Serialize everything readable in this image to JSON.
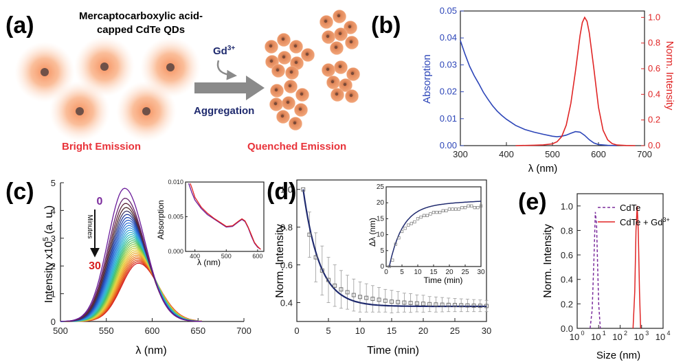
{
  "panels": {
    "a": {
      "label": "(a)",
      "title_line1": "Mercaptocarboxylic acid-",
      "title_line2": "capped CdTe QDs",
      "reagent": "Gd",
      "reagent_sup": "3+",
      "arrow_label": "Aggregation",
      "left_caption": "Bright Emission",
      "right_caption": "Quenched Emission",
      "colors": {
        "caption": "#e8333a",
        "arrow": "#8a8a8a",
        "reagent": "#1f2a6e",
        "qd_core": "#7a5a4e",
        "qd_glow": "#f7a070"
      }
    },
    "b": {
      "label": "(b)",
      "colors": {
        "absorption": "#2c45b8",
        "emission": "#e02424"
      }
    },
    "c": {
      "label": "(c)",
      "arrow_top": "0",
      "arrow_bottom": "30",
      "arrow_text": "Minutes",
      "colors": {
        "start": "#6a1b9a",
        "end": "#d62020"
      }
    },
    "d": {
      "label": "(d)",
      "colors": {
        "fit": "#1f2a6e",
        "marker": "#777777"
      }
    },
    "e": {
      "label": "(e)",
      "colors": {
        "cdte": "#7b2d9c",
        "cdte_gd": "#e02424"
      }
    }
  },
  "chart_data": [
    {
      "id": "b",
      "type": "line",
      "xlabel": "λ (nm)",
      "ylabel_left": "Absorption",
      "ylabel_right": "Norm. Intensity",
      "xlim": [
        300,
        700
      ],
      "ylim_left": [
        0,
        0.05
      ],
      "ylim_right": [
        0,
        1.05
      ],
      "x_ticks": [
        "300",
        "400",
        "500",
        "600",
        "700"
      ],
      "y_ticks_left": [
        "0.00",
        "0.01",
        "0.02",
        "0.03",
        "0.04",
        "0.05"
      ],
      "y_ticks_right": [
        "0.0",
        "0.2",
        "0.4",
        "0.6",
        "0.8",
        "1.0"
      ],
      "series": [
        {
          "axis": "left",
          "x": [
            300,
            310,
            320,
            330,
            340,
            350,
            360,
            370,
            380,
            390,
            400,
            420,
            440,
            460,
            480,
            500,
            510,
            520,
            530,
            540,
            550,
            560,
            570,
            580,
            590,
            600,
            620,
            640
          ],
          "y": [
            0.039,
            0.034,
            0.0295,
            0.026,
            0.023,
            0.0198,
            0.0172,
            0.0148,
            0.0128,
            0.0112,
            0.0098,
            0.0075,
            0.006,
            0.005,
            0.0042,
            0.0035,
            0.0033,
            0.0035,
            0.0039,
            0.0046,
            0.0052,
            0.005,
            0.0038,
            0.0022,
            0.001,
            0.0004,
            0.0001,
            0.0
          ]
        },
        {
          "axis": "right",
          "x": [
            420,
            460,
            480,
            500,
            510,
            520,
            530,
            540,
            550,
            560,
            565,
            570,
            575,
            580,
            590,
            600,
            610,
            620,
            630,
            640,
            660,
            680
          ],
          "y": [
            0.0,
            0.003,
            0.006,
            0.014,
            0.03,
            0.07,
            0.16,
            0.33,
            0.58,
            0.86,
            0.96,
            1.0,
            0.97,
            0.88,
            0.6,
            0.3,
            0.12,
            0.045,
            0.015,
            0.005,
            0.001,
            0.0
          ]
        }
      ]
    },
    {
      "id": "c",
      "type": "line",
      "xlabel": "λ (nm)",
      "ylabel": "Intensity x10",
      "ylabel_sup": "5",
      "ylabel_tail": " (a. u.)",
      "xlim": [
        500,
        700
      ],
      "ylim": [
        0,
        5
      ],
      "x_ticks": [
        "500",
        "550",
        "600",
        "650",
        "700"
      ],
      "y_ticks": [
        "0",
        "1",
        "2",
        "3",
        "4",
        "5"
      ],
      "peak_start": 570,
      "peak_end": 585,
      "amp_start": 4.8,
      "amp_end": 2.1,
      "curve_count": 30,
      "inset": {
        "xlabel": "λ (nm)",
        "ylabel": "Absorption",
        "xlim": [
          370,
          620
        ],
        "ylim": [
          0,
          0.01
        ],
        "x_ticks": [
          "400",
          "500",
          "600"
        ],
        "y_ticks": [
          "0.000",
          "0.005",
          "0.010"
        ],
        "series": [
          {
            "name": "0 min",
            "x": [
              380,
              390,
              400,
              420,
              440,
              460,
              480,
              500,
              520,
              540,
              550,
              560,
              570,
              580,
              590,
              600,
              610
            ],
            "y": [
              0.0098,
              0.0085,
              0.0074,
              0.0062,
              0.0053,
              0.0047,
              0.0041,
              0.0035,
              0.0036,
              0.0043,
              0.0046,
              0.0043,
              0.0034,
              0.0022,
              0.0012,
              0.0006,
              0.0003
            ]
          },
          {
            "name": "30 min",
            "x": [
              385,
              390,
              400,
              420,
              440,
              460,
              480,
              500,
              520,
              540,
              550,
              560,
              570,
              580,
              590,
              600,
              610
            ],
            "y": [
              0.0098,
              0.0092,
              0.0078,
              0.0064,
              0.0055,
              0.0048,
              0.0042,
              0.0036,
              0.0037,
              0.0044,
              0.0047,
              0.0044,
              0.0035,
              0.0024,
              0.0013,
              0.0007,
              0.0003
            ]
          }
        ]
      }
    },
    {
      "id": "d",
      "type": "scatter",
      "xlabel": "Time (min)",
      "ylabel": "Norm. Intensity",
      "xlim": [
        0,
        30
      ],
      "ylim": [
        0.3,
        1.05
      ],
      "x_ticks": [
        "0",
        "5",
        "10",
        "15",
        "20",
        "25",
        "30"
      ],
      "y_ticks": [
        "0.4",
        "0.6",
        "0.8",
        "1.0"
      ],
      "points_x": [
        1,
        2,
        3,
        4,
        5,
        6,
        7,
        8,
        9,
        10,
        11,
        12,
        13,
        14,
        15,
        16,
        17,
        18,
        19,
        20,
        21,
        22,
        23,
        24,
        25,
        26,
        27,
        28,
        29,
        30
      ],
      "points_y": [
        1.0,
        0.76,
        0.64,
        0.57,
        0.52,
        0.49,
        0.47,
        0.455,
        0.44,
        0.43,
        0.425,
        0.42,
        0.415,
        0.41,
        0.405,
        0.403,
        0.4,
        0.398,
        0.396,
        0.394,
        0.392,
        0.39,
        0.389,
        0.388,
        0.387,
        0.386,
        0.385,
        0.384,
        0.383,
        0.382
      ],
      "errors": [
        0.0,
        0.12,
        0.13,
        0.13,
        0.12,
        0.11,
        0.1,
        0.09,
        0.085,
        0.08,
        0.075,
        0.07,
        0.065,
        0.06,
        0.06,
        0.055,
        0.05,
        0.05,
        0.045,
        0.045,
        0.04,
        0.04,
        0.038,
        0.036,
        0.035,
        0.034,
        0.033,
        0.032,
        0.031,
        0.03
      ],
      "inset": {
        "xlabel": "Time (min)",
        "ylabel": "Δλ (nm)",
        "xlim": [
          0,
          30
        ],
        "ylim": [
          0,
          25
        ],
        "x_ticks": [
          "0",
          "5",
          "10",
          "15",
          "20",
          "25",
          "30"
        ],
        "y_ticks": [
          "0",
          "5",
          "10",
          "15",
          "20",
          "25"
        ],
        "points_x": [
          1,
          2,
          3,
          4,
          5,
          6,
          7,
          8,
          9,
          10,
          11,
          12,
          13,
          14,
          15,
          16,
          17,
          18,
          19,
          20,
          21,
          22,
          23,
          24,
          25,
          26,
          27,
          28,
          29,
          30
        ],
        "points_y": [
          0,
          2,
          7,
          9,
          11,
          12,
          13,
          13.5,
          14,
          15,
          15.5,
          16,
          16,
          16.5,
          17,
          17,
          17,
          17.5,
          17.5,
          18,
          18,
          18,
          18,
          18.5,
          18.5,
          19,
          19,
          18.5,
          18.5,
          19
        ]
      }
    },
    {
      "id": "e",
      "type": "line",
      "xlabel": "Size (nm)",
      "ylabel": "Norm. Intensity",
      "x_scale": "log",
      "xlim": [
        1,
        10000
      ],
      "ylim": [
        0,
        1.1
      ],
      "x_ticks": [
        "10",
        "10",
        "10",
        "10",
        "10"
      ],
      "x_tick_exps": [
        "0",
        "1",
        "2",
        "3",
        "4"
      ],
      "y_ticks": [
        "0.0",
        "0.2",
        "0.4",
        "0.6",
        "0.8",
        "1.0"
      ],
      "legend_position": "top-right",
      "series": [
        {
          "name": "CdTe",
          "style": "dashed",
          "x": [
            4,
            5,
            6,
            7,
            8,
            9,
            10,
            12
          ],
          "y": [
            0,
            0.15,
            0.55,
            0.95,
            0.85,
            0.5,
            0.2,
            0
          ]
        },
        {
          "name": "CdTe + Gd",
          "name_sup": "3+",
          "style": "solid",
          "x": [
            400,
            480,
            550,
            620,
            700,
            800,
            900
          ],
          "y": [
            0,
            0.3,
            0.8,
            1.0,
            0.8,
            0.3,
            0
          ]
        }
      ]
    }
  ]
}
